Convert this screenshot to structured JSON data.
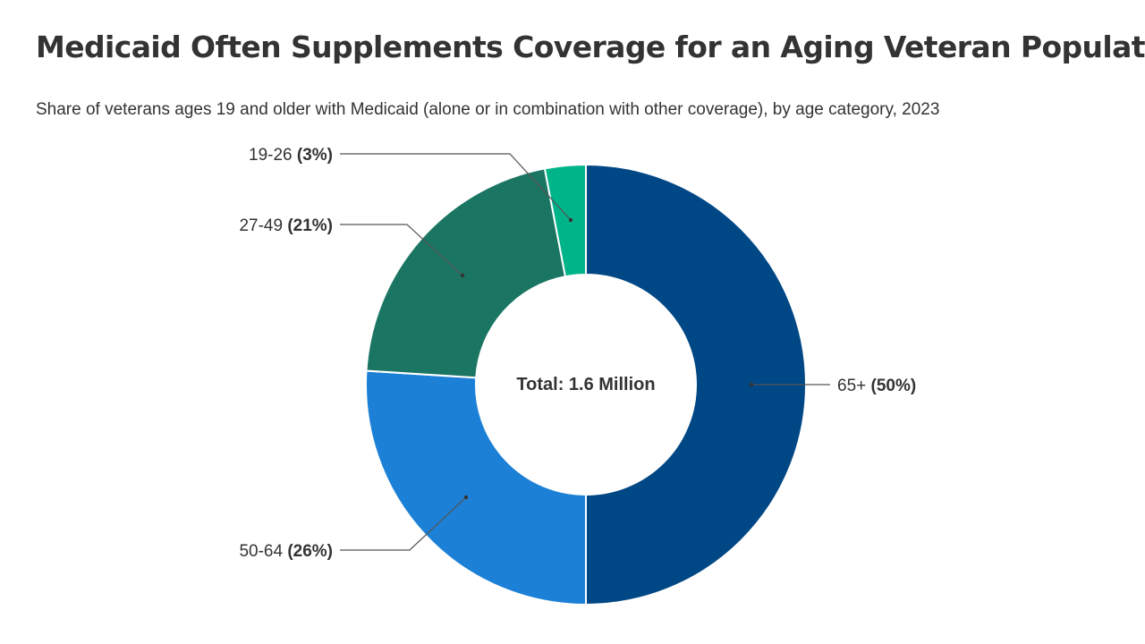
{
  "title": "Medicaid Often Supplements Coverage for an Aging Veteran Population",
  "subtitle": "Share of veterans ages 19 and older with Medicaid (alone or in combination with other coverage), by age category, 2023",
  "chart_data": {
    "type": "pie",
    "style": "donut",
    "center_label": "Total: 1.6 Million",
    "slices": [
      {
        "label": "65+",
        "pct_label": "(50%)",
        "value": 50,
        "color": "#004785"
      },
      {
        "label": "50-64",
        "pct_label": "(26%)",
        "value": 26,
        "color": "#1C80D6"
      },
      {
        "label": "27-49",
        "pct_label": "(21%)",
        "value": 21,
        "color": "#1B7563"
      },
      {
        "label": "19-26",
        "pct_label": "(3%)",
        "value": 3,
        "color": "#00B48A"
      }
    ]
  }
}
